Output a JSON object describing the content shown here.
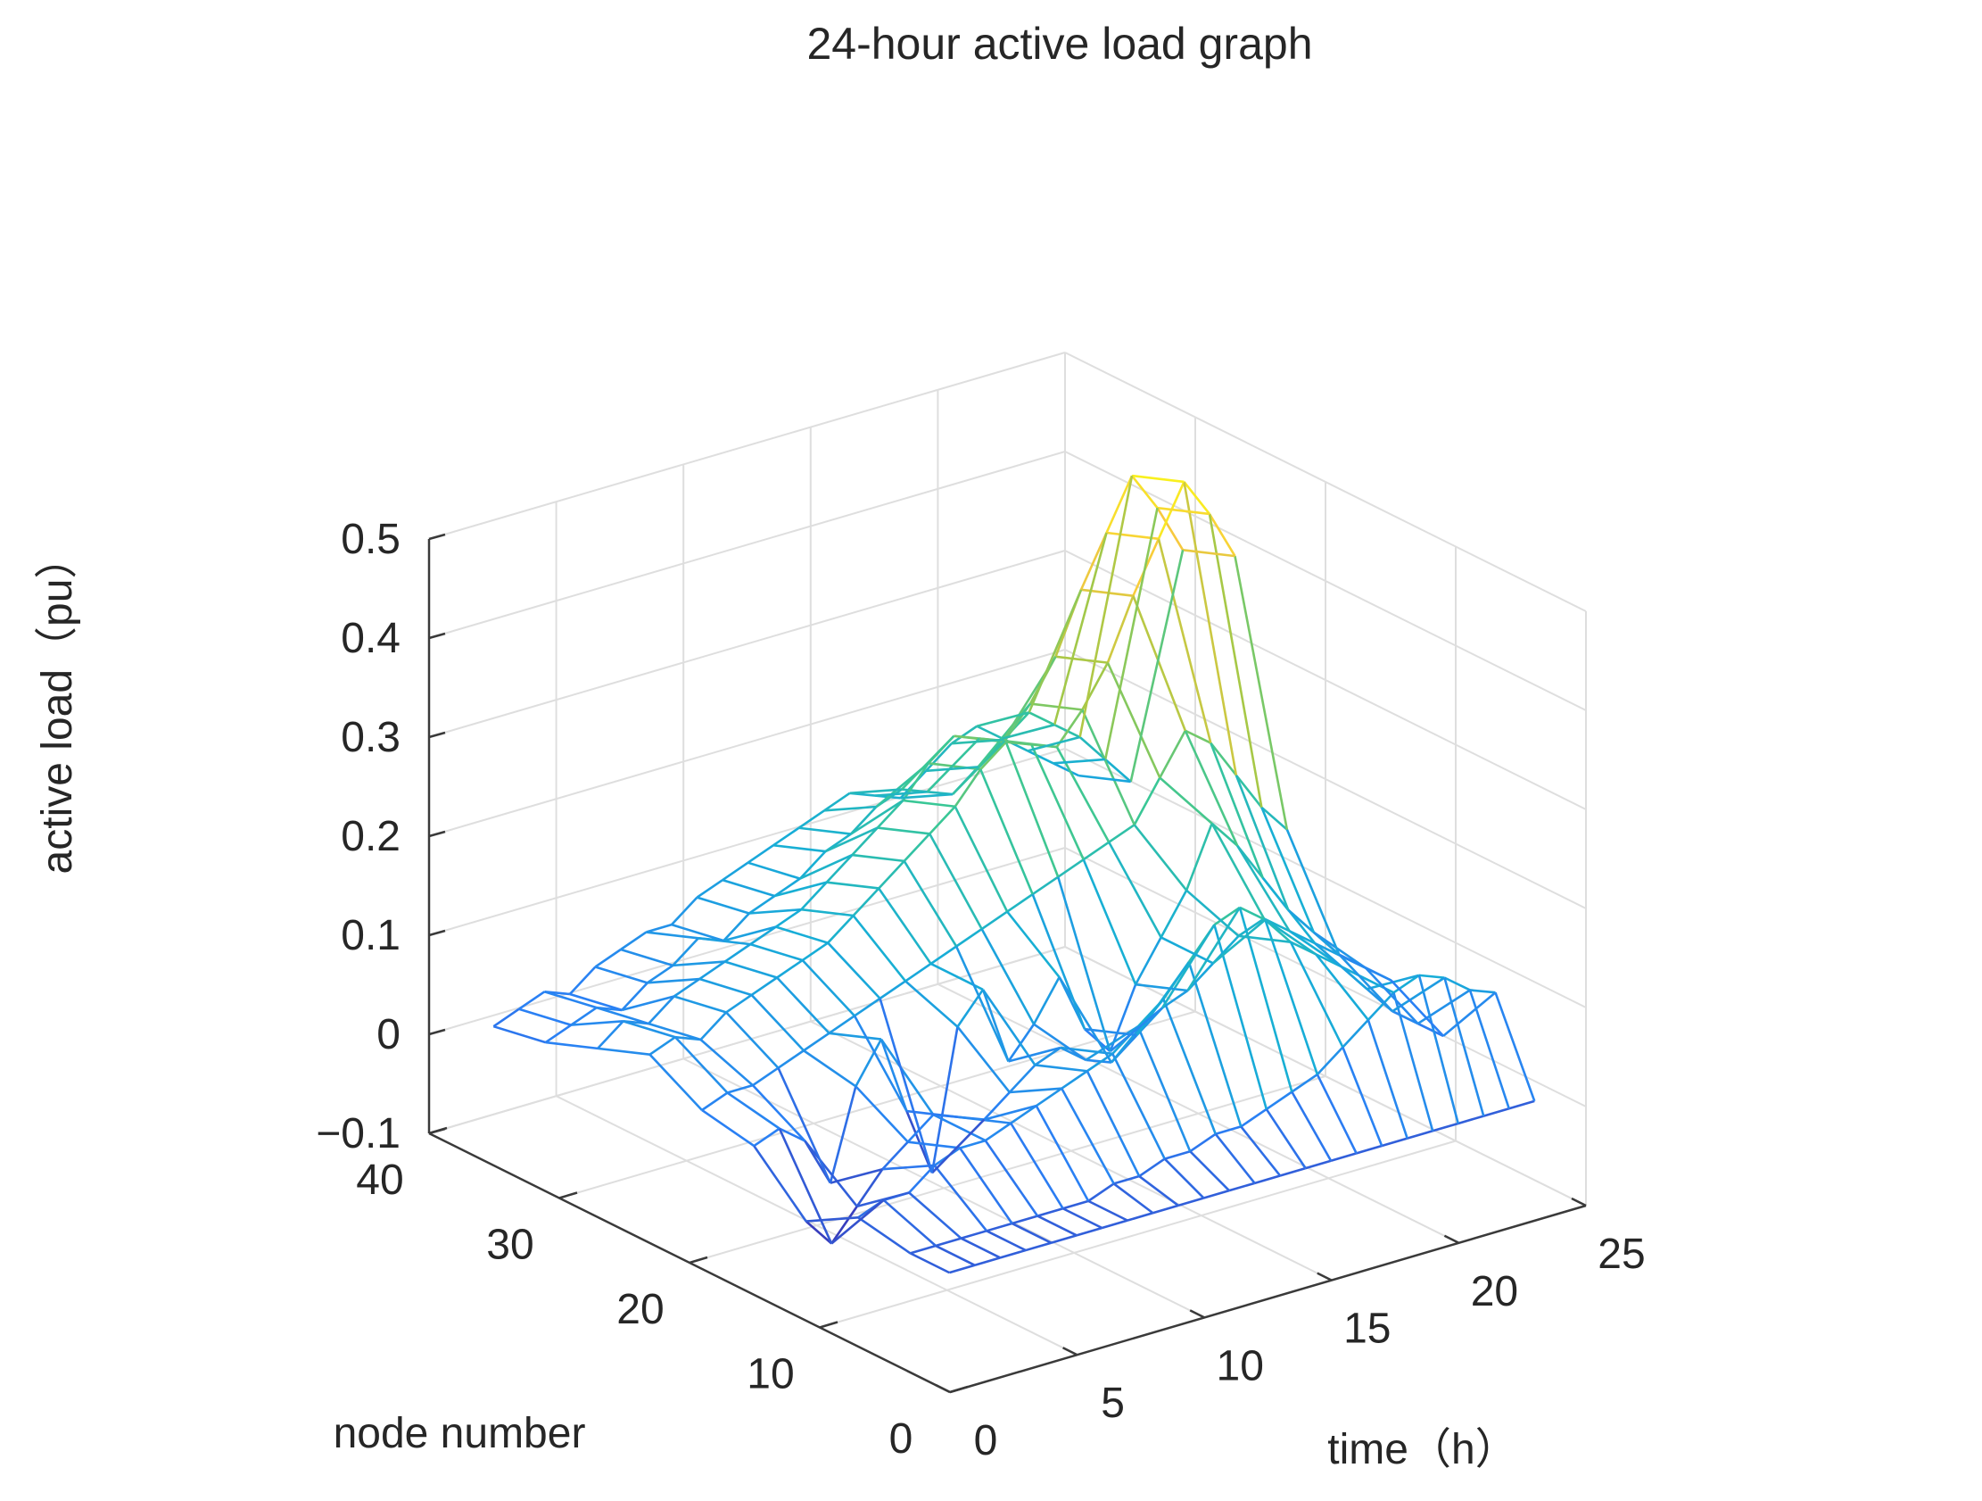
{
  "chart_data": {
    "type": "mesh3d",
    "title": "24-hour active load graph",
    "xlabel": "time（h）",
    "ylabel": "node number",
    "zlabel": "active load（pu）",
    "xlim": [
      0,
      25
    ],
    "ylim": [
      0,
      40
    ],
    "zlim": [
      -0.1,
      0.5
    ],
    "xticks": [
      0,
      5,
      10,
      15,
      20,
      25
    ],
    "yticks": [
      0,
      10,
      20,
      30,
      40
    ],
    "zticks": [
      -0.1,
      0,
      0.1,
      0.2,
      0.3,
      0.4,
      0.5
    ],
    "xtick_labels": [
      "0",
      "5",
      "10",
      "15",
      "20",
      "25"
    ],
    "ytick_labels": [
      "0",
      "10",
      "20",
      "30",
      "40"
    ],
    "ztick_labels": [
      "−0.1",
      "0",
      "0.1",
      "0.2",
      "0.3",
      "0.4",
      "0.5"
    ],
    "grid": true,
    "colormap": [
      "#3d26a8",
      "#2a7ff5",
      "#17aed6",
      "#39c796",
      "#a6c846",
      "#f8c93e",
      "#f9fb15"
    ],
    "time_hours": [
      1,
      2,
      3,
      4,
      5,
      6,
      7,
      8,
      9,
      10,
      11,
      12,
      13,
      14,
      15,
      16,
      17,
      18,
      19,
      20,
      21,
      22,
      23,
      24
    ],
    "nodes": [
      2,
      5,
      9,
      13,
      17,
      21,
      25,
      29,
      33,
      37
    ],
    "load_pu": [
      [
        0.0,
        0.0,
        0.0,
        0.0,
        0.0,
        0.0,
        0.0,
        0.0,
        0.0,
        0.0,
        0.0,
        0.0,
        0.0,
        0.0,
        0.0,
        0.0,
        0.0,
        0.0,
        0.0,
        0.0,
        0.0,
        0.0,
        0.0,
        0.0
      ],
      [
        0.0,
        0.0,
        0.0,
        0.0,
        0.0,
        0.0,
        0.0,
        0.0,
        0.01,
        0.01,
        0.02,
        0.02,
        0.03,
        0.03,
        0.04,
        0.05,
        0.06,
        0.08,
        0.1,
        0.12,
        0.13,
        0.12,
        0.1,
        0.09
      ],
      [
        0.01,
        0.02,
        0.02,
        0.04,
        0.05,
        0.05,
        0.06,
        0.07,
        0.08,
        0.09,
        0.1,
        0.12,
        0.14,
        0.17,
        0.2,
        0.21,
        0.19,
        0.16,
        0.14,
        0.12,
        0.09,
        0.06,
        0.04,
        0.02
      ],
      [
        -0.02,
        -0.05,
        -0.02,
        0.01,
        0.03,
        0.05,
        0.04,
        0.03,
        0.05,
        0.07,
        0.08,
        0.06,
        0.05,
        0.07,
        0.09,
        0.1,
        0.12,
        0.14,
        0.15,
        0.13,
        0.11,
        0.09,
        0.07,
        0.05
      ],
      [
        0.03,
        0.04,
        0.02,
        -0.03,
        0.06,
        0.1,
        0.02,
        -0.05,
        0.09,
        0.12,
        0.04,
        0.07,
        0.11,
        0.05,
        0.02,
        0.08,
        0.12,
        0.16,
        0.22,
        0.19,
        0.15,
        0.11,
        0.08,
        0.05
      ],
      [
        0.04,
        0.05,
        0.05,
        0.06,
        0.07,
        0.08,
        0.09,
        0.1,
        0.11,
        0.12,
        0.13,
        0.14,
        0.15,
        0.16,
        0.17,
        0.18,
        0.19,
        0.2,
        0.24,
        0.28,
        0.26,
        0.22,
        0.18,
        0.15
      ],
      [
        0.07,
        0.08,
        0.07,
        0.09,
        0.1,
        0.11,
        0.12,
        0.13,
        0.15,
        0.17,
        0.19,
        0.21,
        0.23,
        0.26,
        0.28,
        0.27,
        0.26,
        0.29,
        0.33,
        0.39,
        0.44,
        0.49,
        0.45,
        0.4
      ],
      [
        0.05,
        0.07,
        0.06,
        0.08,
        0.09,
        0.1,
        0.11,
        0.12,
        0.13,
        0.15,
        0.17,
        0.19,
        0.21,
        0.24,
        0.26,
        0.25,
        0.24,
        0.27,
        0.31,
        0.37,
        0.42,
        0.47,
        0.43,
        0.38
      ],
      [
        0.03,
        0.04,
        0.05,
        0.04,
        0.06,
        0.07,
        0.09,
        0.08,
        0.1,
        0.11,
        0.12,
        0.14,
        0.15,
        0.17,
        0.18,
        0.17,
        0.16,
        0.18,
        0.2,
        0.22,
        0.2,
        0.18,
        0.15,
        0.12
      ],
      [
        0.02,
        0.03,
        0.04,
        0.03,
        0.05,
        0.06,
        0.07,
        0.07,
        0.09,
        0.1,
        0.11,
        0.12,
        0.13,
        0.14,
        0.15,
        0.14,
        0.13,
        0.15,
        0.17,
        0.18,
        0.16,
        0.14,
        0.12,
        0.1
      ]
    ]
  }
}
